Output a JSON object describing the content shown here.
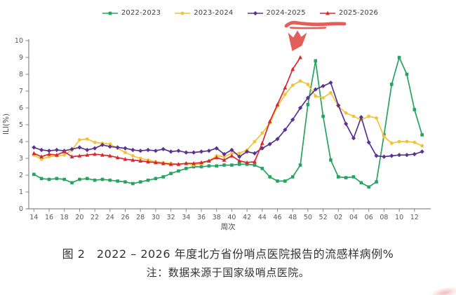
{
  "figure": {
    "caption": "图 2　2022 – 2026 年度北方省份哨点医院报告的流感样病例%",
    "note": "注：数据来源于国家级哨点医院。"
  },
  "annotation": {
    "description": "hand-drawn red underline beneath the 2025-2026 legend entry and a thick red arrow pointing down at the end of the 2025-2026 curve",
    "color": "#e2514c"
  },
  "axis_color": "#8a8a8a",
  "tick_text_color": "#595959",
  "chart_data": {
    "type": "line",
    "title": "",
    "xlabel": "周次",
    "ylabel": "ILI(%)",
    "ylim": [
      0,
      10
    ],
    "y_ticks": [
      0,
      1,
      2,
      3,
      4,
      5,
      6,
      7,
      8,
      9,
      10
    ],
    "grid": false,
    "legend_position": "top",
    "categories": [
      "14",
      "15",
      "16",
      "17",
      "18",
      "19",
      "20",
      "21",
      "22",
      "23",
      "24",
      "25",
      "26",
      "27",
      "28",
      "29",
      "30",
      "31",
      "32",
      "33",
      "34",
      "35",
      "36",
      "37",
      "38",
      "39",
      "40",
      "41",
      "42",
      "43",
      "44",
      "45",
      "46",
      "47",
      "48",
      "49",
      "50",
      "51",
      "52",
      "01",
      "02",
      "03",
      "04",
      "05",
      "06",
      "07",
      "08",
      "09",
      "10",
      "11",
      "12",
      "13"
    ],
    "x_tick_labels": [
      "14",
      "16",
      "18",
      "20",
      "22",
      "24",
      "26",
      "28",
      "30",
      "32",
      "34",
      "36",
      "38",
      "40",
      "42",
      "44",
      "46",
      "48",
      "50",
      "52",
      "02",
      "04",
      "06",
      "08",
      "10",
      "12"
    ],
    "series": [
      {
        "name": "2022-2023",
        "color": "#25a35f",
        "marker": "square",
        "values": [
          2.05,
          1.8,
          1.75,
          1.8,
          1.75,
          1.55,
          1.75,
          1.8,
          1.7,
          1.75,
          1.7,
          1.65,
          1.6,
          1.5,
          1.6,
          1.7,
          1.8,
          1.9,
          2.1,
          2.25,
          2.4,
          2.5,
          2.5,
          2.55,
          2.55,
          2.6,
          2.6,
          2.65,
          2.65,
          2.6,
          2.4,
          1.9,
          1.65,
          1.65,
          1.9,
          2.6,
          6.2,
          8.8,
          5.5,
          2.9,
          1.9,
          1.85,
          1.9,
          1.55,
          1.3,
          1.6,
          4.4,
          7.4,
          9.0,
          8.0,
          5.9,
          4.4
        ]
      },
      {
        "name": "2023-2024",
        "color": "#f2c238",
        "marker": "circle",
        "values": [
          3.2,
          2.95,
          3.1,
          3.15,
          3.2,
          3.5,
          4.1,
          4.15,
          3.95,
          3.9,
          3.85,
          3.6,
          3.35,
          3.15,
          3.0,
          2.9,
          2.8,
          2.75,
          2.7,
          2.65,
          2.7,
          2.6,
          2.7,
          2.85,
          3.15,
          3.1,
          3.3,
          3.3,
          3.5,
          4.0,
          4.5,
          5.1,
          6.1,
          6.8,
          7.35,
          7.6,
          7.4,
          6.7,
          6.6,
          6.9,
          6.1,
          5.7,
          5.5,
          5.3,
          5.5,
          5.4,
          4.3,
          3.9,
          4.0,
          4.0,
          3.95,
          3.75
        ]
      },
      {
        "name": "2024-2025",
        "color": "#5b3191",
        "marker": "diamond",
        "values": [
          3.65,
          3.5,
          3.45,
          3.5,
          3.45,
          3.55,
          3.65,
          3.5,
          3.6,
          3.8,
          3.7,
          3.65,
          3.6,
          3.5,
          3.45,
          3.5,
          3.45,
          3.55,
          3.4,
          3.45,
          3.35,
          3.35,
          3.4,
          3.45,
          3.6,
          3.25,
          3.5,
          3.1,
          3.4,
          3.3,
          3.6,
          3.85,
          4.15,
          4.7,
          5.3,
          6.0,
          6.6,
          7.1,
          7.3,
          7.5,
          6.15,
          5.05,
          4.2,
          5.45,
          3.95,
          3.15,
          3.1,
          3.15,
          3.2,
          3.2,
          3.25,
          3.4
        ]
      },
      {
        "name": "2025-2026",
        "color": "#d8272e",
        "marker": "triangle",
        "values": [
          3.3,
          3.1,
          3.25,
          3.2,
          3.4,
          3.1,
          3.15,
          3.2,
          3.25,
          3.2,
          3.15,
          3.05,
          2.95,
          2.9,
          2.85,
          2.8,
          2.75,
          2.7,
          2.65,
          2.65,
          2.7,
          2.7,
          2.75,
          2.85,
          3.05,
          2.9,
          3.15,
          2.85,
          2.75,
          2.8,
          3.9,
          5.2,
          6.2,
          7.2,
          8.3,
          9.0,
          null,
          null,
          null,
          null,
          null,
          null,
          null,
          null,
          null,
          null,
          null,
          null,
          null,
          null,
          null,
          null
        ]
      }
    ]
  }
}
